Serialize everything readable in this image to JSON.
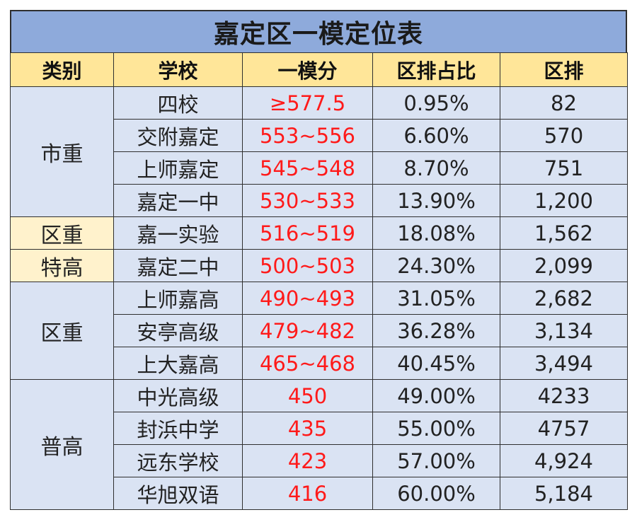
{
  "title": "嘉定区一模定位表",
  "headers": [
    "类别",
    "学校",
    "一模分",
    "区排占比",
    "区排"
  ],
  "groups": [
    {
      "category": "市重",
      "highlight": false,
      "rows": [
        {
          "school": "四校",
          "score": "≥577.5",
          "pct": "0.95%",
          "rank": "82"
        },
        {
          "school": "交附嘉定",
          "score": "553~556",
          "pct": "6.60%",
          "rank": "570"
        },
        {
          "school": "上师嘉定",
          "score": "545~548",
          "pct": "8.70%",
          "rank": "751"
        },
        {
          "school": "嘉定一中",
          "score": "530~533",
          "pct": "13.90%",
          "rank": "1,200"
        }
      ]
    },
    {
      "category": "区重",
      "highlight": true,
      "rows": [
        {
          "school": "嘉一实验",
          "score": "516~519",
          "pct": "18.08%",
          "rank": "1,562"
        }
      ]
    },
    {
      "category": "特高",
      "highlight": true,
      "rows": [
        {
          "school": "嘉定二中",
          "score": "500~503",
          "pct": "24.30%",
          "rank": "2,099"
        }
      ]
    },
    {
      "category": "区重",
      "highlight": false,
      "rows": [
        {
          "school": "上师嘉高",
          "score": "490~493",
          "pct": "31.05%",
          "rank": "2,682"
        },
        {
          "school": "安亭高级",
          "score": "479~482",
          "pct": "36.28%",
          "rank": "3,134"
        },
        {
          "school": "上大嘉高",
          "score": "465~468",
          "pct": "40.45%",
          "rank": "3,494"
        }
      ]
    },
    {
      "category": "普高",
      "highlight": false,
      "rows": [
        {
          "school": "中光高级",
          "score": "450",
          "pct": "49.00%",
          "rank": "4233"
        },
        {
          "school": "封浜中学",
          "score": "435",
          "pct": "55.00%",
          "rank": "4757"
        },
        {
          "school": "远东学校",
          "score": "423",
          "pct": "57.00%",
          "rank": "4,924"
        },
        {
          "school": "华旭双语",
          "score": "416",
          "pct": "60.00%",
          "rank": "5,184"
        }
      ]
    }
  ]
}
